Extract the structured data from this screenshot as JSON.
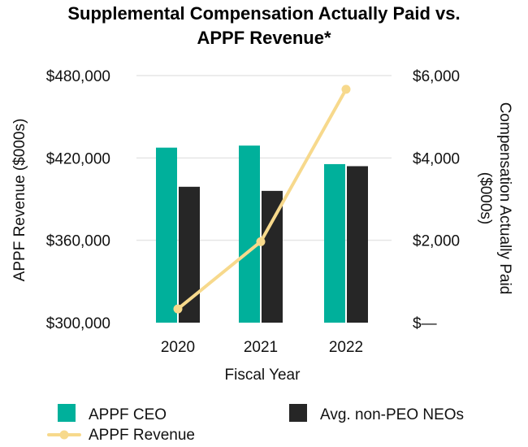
{
  "chart_data": {
    "type": "bar",
    "title_lines": [
      "Supplemental Compensation Actually Paid vs.",
      "APPF Revenue*"
    ],
    "xlabel": "Fiscal Year",
    "ylabel_left": "APPF Revenue ($000s)",
    "ylabel_right_lines": [
      "Compensation Actually Paid",
      "($000s)"
    ],
    "categories": [
      "2020",
      "2021",
      "2022"
    ],
    "left_axis": {
      "range": [
        300000,
        480000
      ],
      "ticks": [
        300000,
        360000,
        420000,
        480000
      ],
      "tick_labels": [
        "$300,000",
        "$360,000",
        "$420,000",
        "$480,000"
      ]
    },
    "right_axis": {
      "range": [
        0,
        6000
      ],
      "ticks": [
        0,
        2000,
        4000,
        6000
      ],
      "tick_labels": [
        "$—",
        "$2,000",
        "$4,000",
        "$6,000"
      ]
    },
    "bar_series": [
      {
        "name": "APPF CEO",
        "axis": "right",
        "color": "#00b09b",
        "values": [
          4250,
          4300,
          3850
        ]
      },
      {
        "name": "Avg. non-PEO NEOs",
        "axis": "right",
        "color": "#262626",
        "values": [
          3300,
          3200,
          3800
        ]
      }
    ],
    "line_series": [
      {
        "name": "APPF Revenue",
        "axis": "left",
        "color": "#f7d98c",
        "values": [
          310000,
          359000,
          470000
        ]
      }
    ],
    "grid": true,
    "legend_position": "bottom"
  }
}
